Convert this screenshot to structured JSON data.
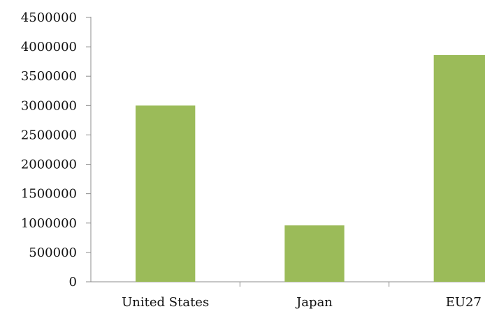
{
  "chart_data": {
    "type": "bar",
    "categories": [
      "United States",
      "Japan",
      "EU27"
    ],
    "values": [
      3000000,
      960000,
      3860000
    ],
    "ylim": [
      0,
      4500000
    ],
    "yticks": [
      0,
      500000,
      1000000,
      1500000,
      2000000,
      2500000,
      3000000,
      3500000,
      4000000,
      4500000
    ],
    "bar_color": "#9bbb59",
    "grid": false,
    "legend": "none"
  }
}
